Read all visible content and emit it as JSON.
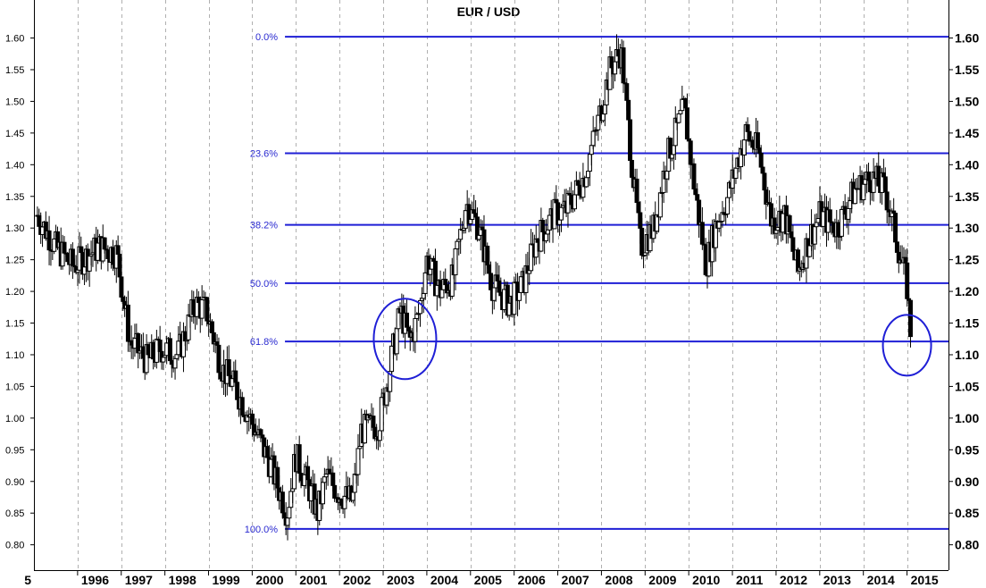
{
  "chart_data": {
    "type": "candlestick",
    "title": "EUR / USD",
    "xlabel": "",
    "ylabel": "",
    "ylim": [
      0.76,
      1.66
    ],
    "y_ticks": [
      "0.80",
      "0.85",
      "0.90",
      "0.95",
      "1.00",
      "1.05",
      "1.10",
      "1.15",
      "1.20",
      "1.25",
      "1.30",
      "1.35",
      "1.40",
      "1.45",
      "1.50",
      "1.55",
      "1.60"
    ],
    "x_range": [
      1995.0,
      2015.95
    ],
    "x_tick_partial": "5",
    "years": [
      "1996",
      "1997",
      "1998",
      "1999",
      "2000",
      "2001",
      "2002",
      "2003",
      "2004",
      "2005",
      "2006",
      "2007",
      "2008",
      "2009",
      "2010",
      "2011",
      "2012",
      "2013",
      "2014",
      "2015"
    ],
    "grid": "vertical dashed at year boundaries",
    "fibonacci_levels": [
      {
        "label": "0.0%",
        "value": 1.602
      },
      {
        "label": "23.6%",
        "value": 1.418
      },
      {
        "label": "38.2%",
        "value": 1.305
      },
      {
        "label": "50.0%",
        "value": 1.213
      },
      {
        "label": "61.8%",
        "value": 1.121
      },
      {
        "label": "100.0%",
        "value": 0.825
      }
    ],
    "fib_start_x": 2000.75,
    "series": [
      {
        "x": 1995.08,
        "value": 1.32
      },
      {
        "x": 1995.5,
        "value": 1.27
      },
      {
        "x": 1995.9,
        "value": 1.24
      },
      {
        "x": 1996.5,
        "value": 1.27
      },
      {
        "x": 1996.9,
        "value": 1.26
      },
      {
        "x": 1997.2,
        "value": 1.12
      },
      {
        "x": 1997.6,
        "value": 1.09
      },
      {
        "x": 1997.9,
        "value": 1.11
      },
      {
        "x": 1998.3,
        "value": 1.1
      },
      {
        "x": 1998.7,
        "value": 1.18
      },
      {
        "x": 1998.95,
        "value": 1.17
      },
      {
        "x": 1999.3,
        "value": 1.08
      },
      {
        "x": 1999.6,
        "value": 1.05
      },
      {
        "x": 1999.95,
        "value": 1.0
      },
      {
        "x": 2000.4,
        "value": 0.93
      },
      {
        "x": 2000.8,
        "value": 0.85
      },
      {
        "x": 2001.0,
        "value": 0.94
      },
      {
        "x": 2001.3,
        "value": 0.89
      },
      {
        "x": 2001.5,
        "value": 0.85
      },
      {
        "x": 2001.7,
        "value": 0.91
      },
      {
        "x": 2002.0,
        "value": 0.88
      },
      {
        "x": 2002.3,
        "value": 0.87
      },
      {
        "x": 2002.5,
        "value": 0.98
      },
      {
        "x": 2002.9,
        "value": 0.99
      },
      {
        "x": 2003.1,
        "value": 1.06
      },
      {
        "x": 2003.4,
        "value": 1.17
      },
      {
        "x": 2003.6,
        "value": 1.12
      },
      {
        "x": 2003.8,
        "value": 1.16
      },
      {
        "x": 2004.0,
        "value": 1.25
      },
      {
        "x": 2004.3,
        "value": 1.2
      },
      {
        "x": 2004.6,
        "value": 1.22
      },
      {
        "x": 2004.9,
        "value": 1.34
      },
      {
        "x": 2005.2,
        "value": 1.3
      },
      {
        "x": 2005.5,
        "value": 1.21
      },
      {
        "x": 2005.9,
        "value": 1.18
      },
      {
        "x": 2006.2,
        "value": 1.21
      },
      {
        "x": 2006.5,
        "value": 1.28
      },
      {
        "x": 2006.9,
        "value": 1.32
      },
      {
        "x": 2007.2,
        "value": 1.33
      },
      {
        "x": 2007.6,
        "value": 1.38
      },
      {
        "x": 2007.9,
        "value": 1.46
      },
      {
        "x": 2008.2,
        "value": 1.55
      },
      {
        "x": 2008.45,
        "value": 1.58
      },
      {
        "x": 2008.7,
        "value": 1.4
      },
      {
        "x": 2008.9,
        "value": 1.27
      },
      {
        "x": 2009.2,
        "value": 1.3
      },
      {
        "x": 2009.5,
        "value": 1.41
      },
      {
        "x": 2009.9,
        "value": 1.49
      },
      {
        "x": 2010.1,
        "value": 1.38
      },
      {
        "x": 2010.4,
        "value": 1.24
      },
      {
        "x": 2010.6,
        "value": 1.3
      },
      {
        "x": 2010.9,
        "value": 1.35
      },
      {
        "x": 2011.3,
        "value": 1.45
      },
      {
        "x": 2011.6,
        "value": 1.42
      },
      {
        "x": 2011.9,
        "value": 1.31
      },
      {
        "x": 2012.2,
        "value": 1.32
      },
      {
        "x": 2012.5,
        "value": 1.23
      },
      {
        "x": 2012.8,
        "value": 1.29
      },
      {
        "x": 2013.0,
        "value": 1.32
      },
      {
        "x": 2013.4,
        "value": 1.3
      },
      {
        "x": 2013.8,
        "value": 1.36
      },
      {
        "x": 2014.2,
        "value": 1.38
      },
      {
        "x": 2014.5,
        "value": 1.36
      },
      {
        "x": 2014.8,
        "value": 1.27
      },
      {
        "x": 2015.0,
        "value": 1.21
      },
      {
        "x": 2015.1,
        "value": 1.12
      }
    ],
    "highlight_circles": [
      {
        "x": 2003.5,
        "y": 1.125
      },
      {
        "x": 2015.0,
        "y": 1.115
      }
    ],
    "colors": {
      "fib_line": "#1f1fd6",
      "fib_label": "#2a2ad0",
      "circle": "#1f1fd6",
      "candle": "#000000",
      "grid": "#b0b0b0"
    }
  }
}
